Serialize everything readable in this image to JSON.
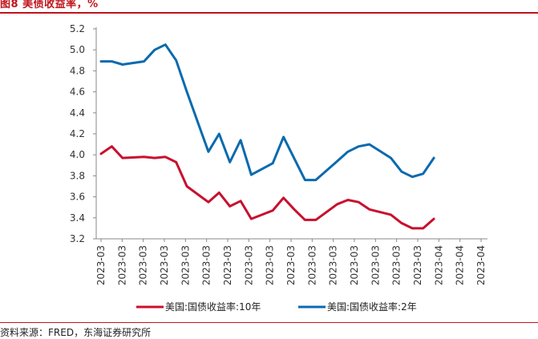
{
  "header": {
    "title": "图8 美债收益率，%"
  },
  "footer": {
    "source": "资料来源：FRED，东海证券研究所"
  },
  "colors": {
    "accent": "#c0141c",
    "series_10y": "#c8102e",
    "series_2y": "#0a6aae"
  },
  "chart_data": {
    "type": "line",
    "title": "",
    "xlabel": "",
    "ylabel": "",
    "ylim": [
      3.2,
      5.2
    ],
    "yticks": [
      "3.2",
      "3.4",
      "3.6",
      "3.8",
      "4.0",
      "4.2",
      "4.4",
      "4.6",
      "4.8",
      "5.0",
      "5.2"
    ],
    "xticks": [
      "2023-03",
      "2023-03",
      "2023-03",
      "2023-03",
      "2023-03",
      "2023-03",
      "2023-03",
      "2023-03",
      "2023-03",
      "2023-03",
      "2023-03",
      "2023-03",
      "2023-03",
      "2023-03",
      "2023-03",
      "2023-03",
      "2023-04",
      "2023-04",
      "2023-04"
    ],
    "grid": false,
    "legend": "bottom",
    "x": [
      0,
      1,
      2,
      3,
      4,
      5,
      6,
      7,
      8,
      9,
      10,
      11,
      12,
      13,
      14,
      15,
      16,
      17,
      18,
      19,
      20,
      21,
      22,
      23,
      24,
      25,
      26,
      27,
      28,
      29,
      30,
      31,
      32,
      33,
      34,
      35,
      36
    ],
    "series": [
      {
        "name": "美国:国债收益率:10年",
        "values": [
          4.01,
          4.08,
          3.97,
          null,
          3.98,
          3.97,
          3.98,
          3.93,
          3.7,
          null,
          3.55,
          3.64,
          3.51,
          3.56,
          3.39,
          null,
          3.47,
          3.59,
          3.48,
          3.38,
          3.38,
          null,
          3.53,
          3.57,
          3.55,
          3.48,
          null,
          3.43,
          3.35,
          3.3,
          3.3,
          3.39,
          null,
          null,
          null,
          null,
          null
        ]
      },
      {
        "name": "美国:国债收益率:2年",
        "values": [
          4.89,
          4.89,
          4.86,
          null,
          4.89,
          5.0,
          5.05,
          4.9,
          4.6,
          null,
          4.03,
          4.2,
          3.93,
          4.14,
          3.81,
          null,
          3.92,
          4.17,
          null,
          3.76,
          3.76,
          null,
          3.94,
          4.03,
          4.08,
          4.1,
          null,
          3.97,
          3.84,
          3.79,
          3.82,
          3.97,
          null,
          null,
          null,
          null,
          null
        ]
      }
    ]
  }
}
